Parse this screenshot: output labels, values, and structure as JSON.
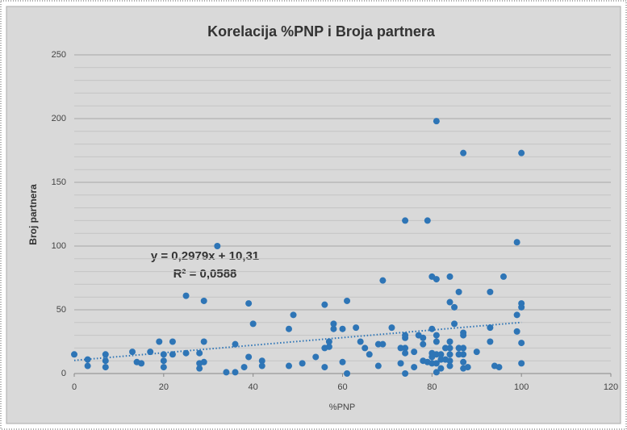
{
  "chart_data": {
    "type": "scatter",
    "title": "Korelacija %PNP i Broja partnera",
    "x_label": "%PNP",
    "y_label": "Broj partnera",
    "color": "#2e75b6",
    "xlim": [
      0,
      120
    ],
    "xticks": [
      0,
      20,
      40,
      60,
      80,
      100,
      120
    ],
    "ylim": [
      0,
      250
    ],
    "yticks": [
      0,
      50,
      100,
      150,
      200,
      250
    ],
    "y_minor_ticks": [
      10,
      20,
      30,
      40,
      60,
      70,
      80,
      90,
      110,
      120,
      130,
      140,
      160,
      170,
      180,
      190,
      210,
      220,
      230,
      240
    ],
    "grid": true,
    "x": [
      0,
      3,
      3,
      7,
      7,
      7,
      13,
      14,
      15,
      17,
      19,
      20,
      20,
      20,
      22,
      22,
      25,
      25,
      28,
      28,
      28,
      29,
      29,
      29,
      32,
      34,
      36,
      36,
      38,
      39,
      39,
      40,
      42,
      42,
      48,
      48,
      49,
      51,
      54,
      56,
      56,
      56,
      57,
      57,
      58,
      58,
      60,
      60,
      61,
      61,
      63,
      64,
      65,
      66,
      68,
      68,
      69,
      69,
      71,
      73,
      73,
      74,
      74,
      74,
      74,
      74,
      74,
      76,
      76,
      77,
      78,
      78,
      78,
      79,
      79,
      80,
      80,
      80,
      80,
      80,
      81,
      81,
      81,
      81,
      81,
      81,
      81,
      82,
      82,
      82,
      83,
      83,
      84,
      84,
      84,
      84,
      84,
      84,
      84,
      85,
      85,
      86,
      86,
      86,
      87,
      87,
      87,
      87,
      87,
      87,
      87,
      88,
      90,
      93,
      93,
      93,
      94,
      95,
      96,
      99,
      99,
      99,
      100,
      100,
      100,
      100,
      100
    ],
    "values": [
      15,
      11,
      6,
      15,
      10,
      5,
      17,
      9,
      8,
      17,
      25,
      15,
      10,
      5,
      25,
      15,
      61,
      16,
      16,
      8,
      4,
      57,
      25,
      9,
      100,
      1,
      23,
      1,
      5,
      13,
      55,
      39,
      10,
      6,
      35,
      6,
      46,
      8,
      13,
      54,
      5,
      20,
      21,
      25,
      39,
      35,
      35,
      9,
      57,
      0,
      36,
      25,
      20,
      15,
      23,
      6,
      23,
      73,
      36,
      20,
      8,
      120,
      30,
      28,
      20,
      16,
      0,
      17,
      5,
      30,
      28,
      23,
      10,
      120,
      9,
      76,
      35,
      16,
      13,
      8,
      74,
      198,
      30,
      25,
      15,
      8,
      1,
      15,
      11,
      4,
      20,
      11,
      76,
      56,
      25,
      20,
      15,
      10,
      6,
      52,
      39,
      64,
      15,
      20,
      173,
      30,
      32,
      20,
      15,
      9,
      4,
      5,
      17,
      64,
      36,
      25,
      6,
      5,
      76,
      103,
      46,
      33,
      173,
      55,
      52,
      24,
      8
    ],
    "trendline": {
      "slope": 0.2979,
      "intercept": 10.31,
      "equation": "y = 0,2979x + 10,31",
      "r2_label": "R² = 0,0588"
    }
  }
}
